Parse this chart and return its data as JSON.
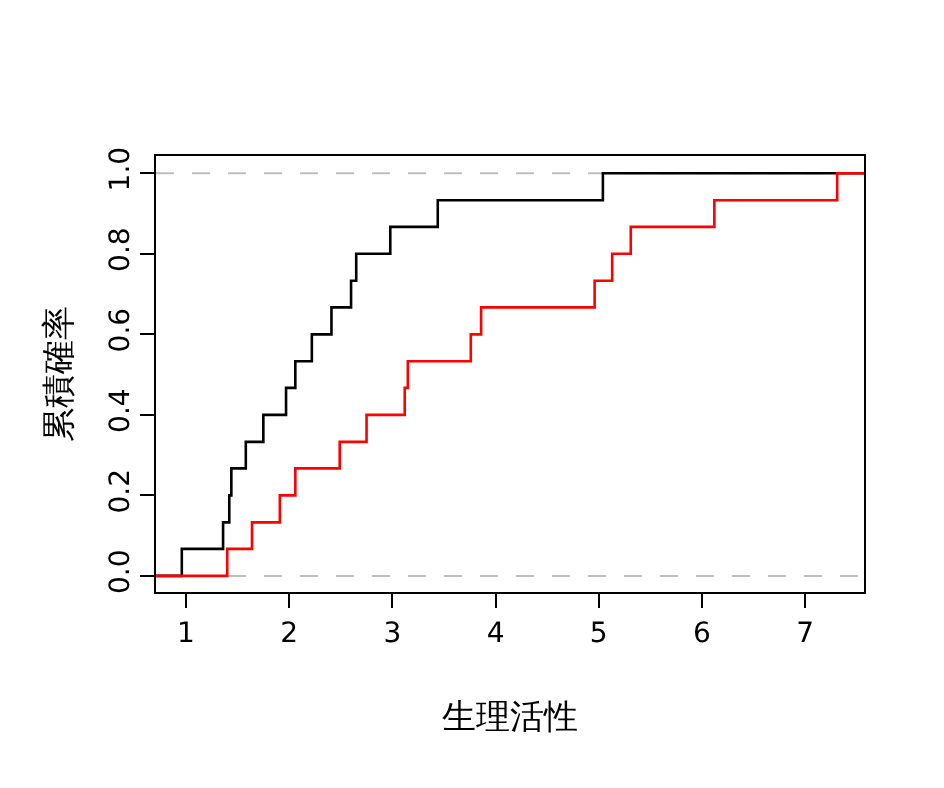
{
  "chart_data": {
    "type": "step",
    "xlabel": "生理活性",
    "ylabel": "累積確率",
    "xlim": [
      0.71,
      7.57
    ],
    "ylim": [
      -0.04,
      1.043
    ],
    "xticks": [
      1,
      2,
      3,
      4,
      5,
      6,
      7
    ],
    "yticks": [
      {
        "value": 0,
        "label": "0.0"
      },
      0.2,
      0.4,
      0.6,
      0.8,
      {
        "value": 1,
        "label": "1.0"
      }
    ],
    "grid": false,
    "marker": "none",
    "line_style": "solid",
    "ref_lines": [
      {
        "axis": "y",
        "value": 0,
        "color": "#bebebe",
        "line_style": "dashed"
      },
      {
        "axis": "y",
        "value": 1,
        "color": "#bebebe",
        "line_style": "dashed"
      }
    ],
    "series": [
      {
        "color": "#000000",
        "x": [
          0.71,
          0.96,
          1.36,
          1.42,
          1.44,
          1.58,
          1.75,
          1.97,
          2.06,
          2.22,
          2.41,
          2.6,
          2.65,
          2.98,
          3.44,
          5.04,
          7.57
        ],
        "values": [
          0,
          0.067,
          0.133,
          0.2,
          0.267,
          0.333,
          0.4,
          0.467,
          0.533,
          0.6,
          0.667,
          0.733,
          0.8,
          0.867,
          0.933,
          1,
          1
        ]
      },
      {
        "color": "#ff0000",
        "x": [
          0.71,
          1.4,
          1.64,
          1.91,
          2.06,
          2.49,
          2.75,
          3.12,
          3.15,
          3.76,
          3.86,
          4.96,
          5.13,
          5.31,
          6.12,
          7.31,
          7.57
        ],
        "values": [
          0,
          0.067,
          0.133,
          0.2,
          0.267,
          0.333,
          0.4,
          0.467,
          0.533,
          0.6,
          0.667,
          0.733,
          0.8,
          0.867,
          0.933,
          1,
          1
        ]
      }
    ]
  }
}
